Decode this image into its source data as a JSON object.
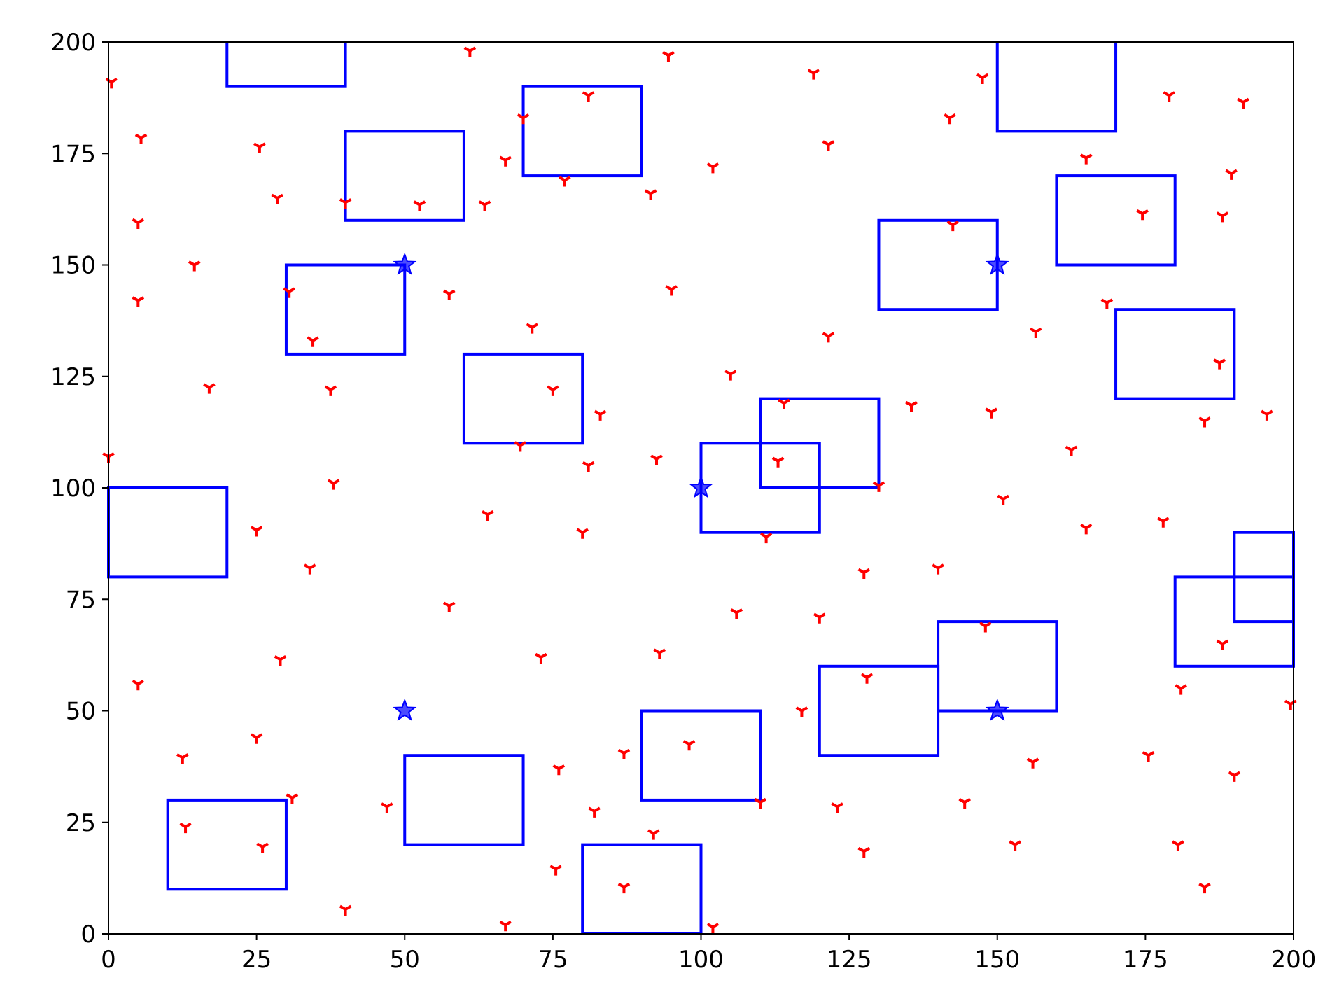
{
  "chart_data": {
    "type": "scatter",
    "title": "",
    "xlabel": "",
    "ylabel": "",
    "xlim": [
      0,
      200
    ],
    "ylim": [
      0,
      200
    ],
    "xticks": [
      0,
      25,
      50,
      75,
      100,
      125,
      150,
      175,
      200
    ],
    "yticks": [
      0,
      25,
      50,
      75,
      100,
      125,
      150,
      175,
      200
    ],
    "grid": false,
    "legend": null,
    "colors": {
      "points": "#ff0000",
      "rectangles": "#0000ff",
      "stars": "#0000ff",
      "axes": "#000000"
    },
    "rectangles": [
      {
        "x": 20,
        "y": 190,
        "w": 20,
        "h": 10
      },
      {
        "x": 40,
        "y": 160,
        "w": 20,
        "h": 20
      },
      {
        "x": 70,
        "y": 170,
        "w": 20,
        "h": 20
      },
      {
        "x": 150,
        "y": 180,
        "w": 20,
        "h": 20
      },
      {
        "x": 160,
        "y": 150,
        "w": 20,
        "h": 20
      },
      {
        "x": 130,
        "y": 140,
        "w": 20,
        "h": 20
      },
      {
        "x": 30,
        "y": 130,
        "w": 20,
        "h": 20
      },
      {
        "x": 170,
        "y": 120,
        "w": 20,
        "h": 20
      },
      {
        "x": 60,
        "y": 110,
        "w": 20,
        "h": 20
      },
      {
        "x": 110,
        "y": 100,
        "w": 20,
        "h": 20
      },
      {
        "x": 100,
        "y": 90,
        "w": 20,
        "h": 20
      },
      {
        "x": 0,
        "y": 80,
        "w": 20,
        "h": 20
      },
      {
        "x": 190,
        "y": 70,
        "w": 10,
        "h": 20
      },
      {
        "x": 180,
        "y": 60,
        "w": 20,
        "h": 20
      },
      {
        "x": 140,
        "y": 50,
        "w": 20,
        "h": 20
      },
      {
        "x": 120,
        "y": 40,
        "w": 20,
        "h": 20
      },
      {
        "x": 90,
        "y": 30,
        "w": 20,
        "h": 20
      },
      {
        "x": 50,
        "y": 20,
        "w": 20,
        "h": 20
      },
      {
        "x": 10,
        "y": 10,
        "w": 20,
        "h": 20
      },
      {
        "x": 80,
        "y": 0,
        "w": 20,
        "h": 20
      }
    ],
    "stars": [
      [
        50,
        150
      ],
      [
        150,
        150
      ],
      [
        100,
        100
      ],
      [
        50,
        50
      ],
      [
        150,
        50
      ]
    ],
    "points": [
      [
        0.5,
        191
      ],
      [
        5.5,
        178.5
      ],
      [
        5,
        159.5
      ],
      [
        5,
        142
      ],
      [
        14.5,
        150
      ],
      [
        17,
        122.5
      ],
      [
        0,
        107
      ],
      [
        5,
        56
      ],
      [
        12.5,
        39.5
      ],
      [
        13,
        24
      ],
      [
        25.5,
        176.5
      ],
      [
        28.5,
        165
      ],
      [
        30.5,
        144
      ],
      [
        34.5,
        133
      ],
      [
        37.5,
        122
      ],
      [
        38,
        101
      ],
      [
        25,
        90.5
      ],
      [
        34,
        82
      ],
      [
        29,
        61.5
      ],
      [
        25,
        44
      ],
      [
        31,
        30.5
      ],
      [
        26,
        19.5
      ],
      [
        40,
        5.5
      ],
      [
        40,
        164
      ],
      [
        47,
        28.5
      ],
      [
        52.5,
        163.5
      ],
      [
        57.5,
        143.5
      ],
      [
        57.5,
        73.5
      ],
      [
        61,
        198
      ],
      [
        64,
        94
      ],
      [
        63.5,
        163.5
      ],
      [
        67,
        173.5
      ],
      [
        70,
        183
      ],
      [
        71.5,
        136
      ],
      [
        69.5,
        109.5
      ],
      [
        75,
        122
      ],
      [
        73,
        62
      ],
      [
        76,
        37
      ],
      [
        75.5,
        14.5
      ],
      [
        67,
        2
      ],
      [
        81,
        188
      ],
      [
        77,
        169
      ],
      [
        83,
        116.5
      ],
      [
        81,
        105
      ],
      [
        80,
        90
      ],
      [
        82,
        27.5
      ],
      [
        87,
        40.5
      ],
      [
        87,
        10.5
      ],
      [
        92,
        22.5
      ],
      [
        91.5,
        166
      ],
      [
        94.5,
        197
      ],
      [
        95,
        144.5
      ],
      [
        92.5,
        106.5
      ],
      [
        93,
        63
      ],
      [
        98,
        42.5
      ],
      [
        102,
        172
      ],
      [
        105,
        125.5
      ],
      [
        106,
        72
      ],
      [
        102,
        1.5
      ],
      [
        110,
        29.5
      ],
      [
        111,
        89
      ],
      [
        113,
        106
      ],
      [
        114,
        119
      ],
      [
        117,
        50
      ],
      [
        119,
        193
      ],
      [
        121.5,
        177
      ],
      [
        121.5,
        134
      ],
      [
        120,
        71
      ],
      [
        123,
        28.5
      ],
      [
        128,
        57.5
      ],
      [
        127.5,
        81
      ],
      [
        127.5,
        18.5
      ],
      [
        130,
        100.5
      ],
      [
        135.5,
        118.5
      ],
      [
        140,
        82
      ],
      [
        142,
        183
      ],
      [
        142.5,
        159
      ],
      [
        144.5,
        29.5
      ],
      [
        147.5,
        192
      ],
      [
        149,
        117
      ],
      [
        148,
        69
      ],
      [
        151,
        97.5
      ],
      [
        153,
        20
      ],
      [
        156,
        38.5
      ],
      [
        156.5,
        135
      ],
      [
        162.5,
        108.5
      ],
      [
        165,
        174
      ],
      [
        165,
        91
      ],
      [
        168.5,
        141.5
      ],
      [
        174.5,
        161.5
      ],
      [
        175.5,
        40
      ],
      [
        178,
        92.5
      ],
      [
        179,
        188
      ],
      [
        180.5,
        20
      ],
      [
        181,
        55
      ],
      [
        185,
        115
      ],
      [
        185,
        10.5
      ],
      [
        187.5,
        128
      ],
      [
        188,
        65
      ],
      [
        188,
        161
      ],
      [
        189.5,
        170.5
      ],
      [
        190,
        35.5
      ],
      [
        191.5,
        186.5
      ],
      [
        195.5,
        116.5
      ],
      [
        199.5,
        51.5
      ]
    ]
  }
}
